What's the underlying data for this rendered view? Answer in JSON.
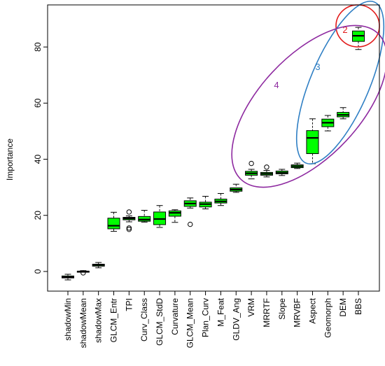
{
  "chart_data": {
    "type": "box",
    "ylabel": "Importance",
    "ylim": [
      -7,
      95
    ],
    "yticks": [
      0,
      20,
      40,
      60,
      80
    ],
    "grid": false,
    "legend": "none",
    "box_fill": "#00ff00",
    "categories": [
      "shadowMin",
      "shadowMean",
      "shadowMax",
      "GLCM_Entr",
      "TPI",
      "Curv_Class",
      "GLCM_StdD",
      "Curvature",
      "GLCM_Mean",
      "Plan_Curv",
      "M_Feat",
      "GLDV_Ang",
      "VRM",
      "MRRTF",
      "Slope",
      "MRVBF",
      "Aspect",
      "Geomorph",
      "DEM",
      "BBS"
    ],
    "boxes": [
      {
        "category": "shadowMin",
        "min": -3.0,
        "q1": -2.3,
        "median": -2.0,
        "q3": -1.6,
        "max": -1.0,
        "outliers": []
      },
      {
        "category": "shadowMean",
        "min": -0.2,
        "q1": -0.1,
        "median": 0.0,
        "q3": 0.1,
        "max": 0.3,
        "outliers": [
          -0.5
        ]
      },
      {
        "category": "shadowMax",
        "min": 1.3,
        "q1": 1.9,
        "median": 2.3,
        "q3": 2.6,
        "max": 3.2,
        "outliers": []
      },
      {
        "category": "GLCM_Entr",
        "min": 14.3,
        "q1": 15.2,
        "median": 16.3,
        "q3": 19.0,
        "max": 21.1,
        "outliers": []
      },
      {
        "category": "TPI",
        "min": 17.7,
        "q1": 18.4,
        "median": 18.9,
        "q3": 19.3,
        "max": 19.8,
        "outliers": [
          21.2,
          15.5,
          15.0
        ]
      },
      {
        "category": "Curv_Class",
        "min": 17.6,
        "q1": 17.9,
        "median": 18.5,
        "q3": 19.6,
        "max": 21.8,
        "outliers": []
      },
      {
        "category": "GLCM_StdD",
        "min": 15.7,
        "q1": 16.7,
        "median": 18.7,
        "q3": 21.2,
        "max": 23.5,
        "outliers": []
      },
      {
        "category": "Curvature",
        "min": 17.5,
        "q1": 19.7,
        "median": 20.9,
        "q3": 21.6,
        "max": 22.0,
        "outliers": []
      },
      {
        "category": "GLCM_Mean",
        "min": 22.6,
        "q1": 23.2,
        "median": 24.2,
        "q3": 25.2,
        "max": 26.2,
        "outliers": [
          16.8
        ]
      },
      {
        "category": "Plan_Curv",
        "min": 22.3,
        "q1": 23.0,
        "median": 24.0,
        "q3": 24.7,
        "max": 26.8,
        "outliers": []
      },
      {
        "category": "M_Feat",
        "min": 23.5,
        "q1": 24.4,
        "median": 25.0,
        "q3": 25.8,
        "max": 27.8,
        "outliers": []
      },
      {
        "category": "GLDV_Ang",
        "min": 28.2,
        "q1": 28.6,
        "median": 29.2,
        "q3": 29.8,
        "max": 31.1,
        "outliers": []
      },
      {
        "category": "VRM",
        "min": 33.0,
        "q1": 34.3,
        "median": 35.0,
        "q3": 35.7,
        "max": 36.4,
        "outliers": [
          38.5
        ]
      },
      {
        "category": "MRRTF",
        "min": 33.7,
        "q1": 34.3,
        "median": 34.8,
        "q3": 35.3,
        "max": 36.0,
        "outliers": [
          37.2
        ]
      },
      {
        "category": "Slope",
        "min": 34.2,
        "q1": 34.8,
        "median": 35.2,
        "q3": 35.8,
        "max": 36.4,
        "outliers": []
      },
      {
        "category": "MRVBF",
        "min": 36.7,
        "q1": 37.0,
        "median": 37.5,
        "q3": 38.0,
        "max": 38.6,
        "outliers": []
      },
      {
        "category": "Aspect",
        "min": 38.4,
        "q1": 42.0,
        "median": 47.6,
        "q3": 50.2,
        "max": 54.4,
        "outliers": []
      },
      {
        "category": "Geomorph",
        "min": 50.1,
        "q1": 51.6,
        "median": 53.0,
        "q3": 54.3,
        "max": 55.6,
        "outliers": []
      },
      {
        "category": "DEM",
        "min": 54.4,
        "q1": 55.1,
        "median": 55.8,
        "q3": 56.7,
        "max": 58.4,
        "outliers": []
      },
      {
        "category": "BBS",
        "min": 79.1,
        "q1": 82.0,
        "median": 84.0,
        "q3": 85.7,
        "max": 87.0,
        "outliers": []
      }
    ],
    "annotations": [
      {
        "label": "2",
        "color": "#e21a1a",
        "kind": "ellipse"
      },
      {
        "label": "3",
        "color": "#2f7fc4",
        "kind": "ellipse"
      },
      {
        "label": "4",
        "color": "#8e2aa0",
        "kind": "ellipse"
      }
    ]
  }
}
